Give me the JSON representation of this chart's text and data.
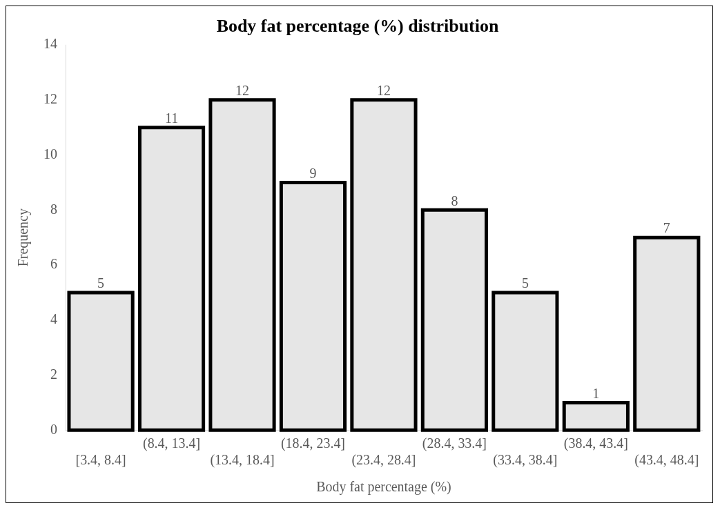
{
  "chart_data": {
    "type": "bar",
    "title": "Body fat percentage (%) distribution",
    "xlabel": "Body fat percentage (%)",
    "ylabel": "Frequency",
    "categories": [
      "[3.4, 8.4]",
      "(8.4, 13.4]",
      "(13.4, 18.4]",
      "(18.4, 23.4]",
      "(23.4, 28.4]",
      "(28.4, 33.4]",
      "(33.4, 38.4]",
      "(38.4, 43.4]",
      "(43.4, 48.4]"
    ],
    "values": [
      5,
      11,
      12,
      9,
      12,
      8,
      5,
      1,
      7
    ],
    "color": "#e6e6e6",
    "ylim": [
      0,
      14
    ],
    "yticks": [
      0,
      2,
      4,
      6,
      8,
      10,
      12,
      14
    ],
    "grid": false,
    "legend": false,
    "data_labels": true
  }
}
